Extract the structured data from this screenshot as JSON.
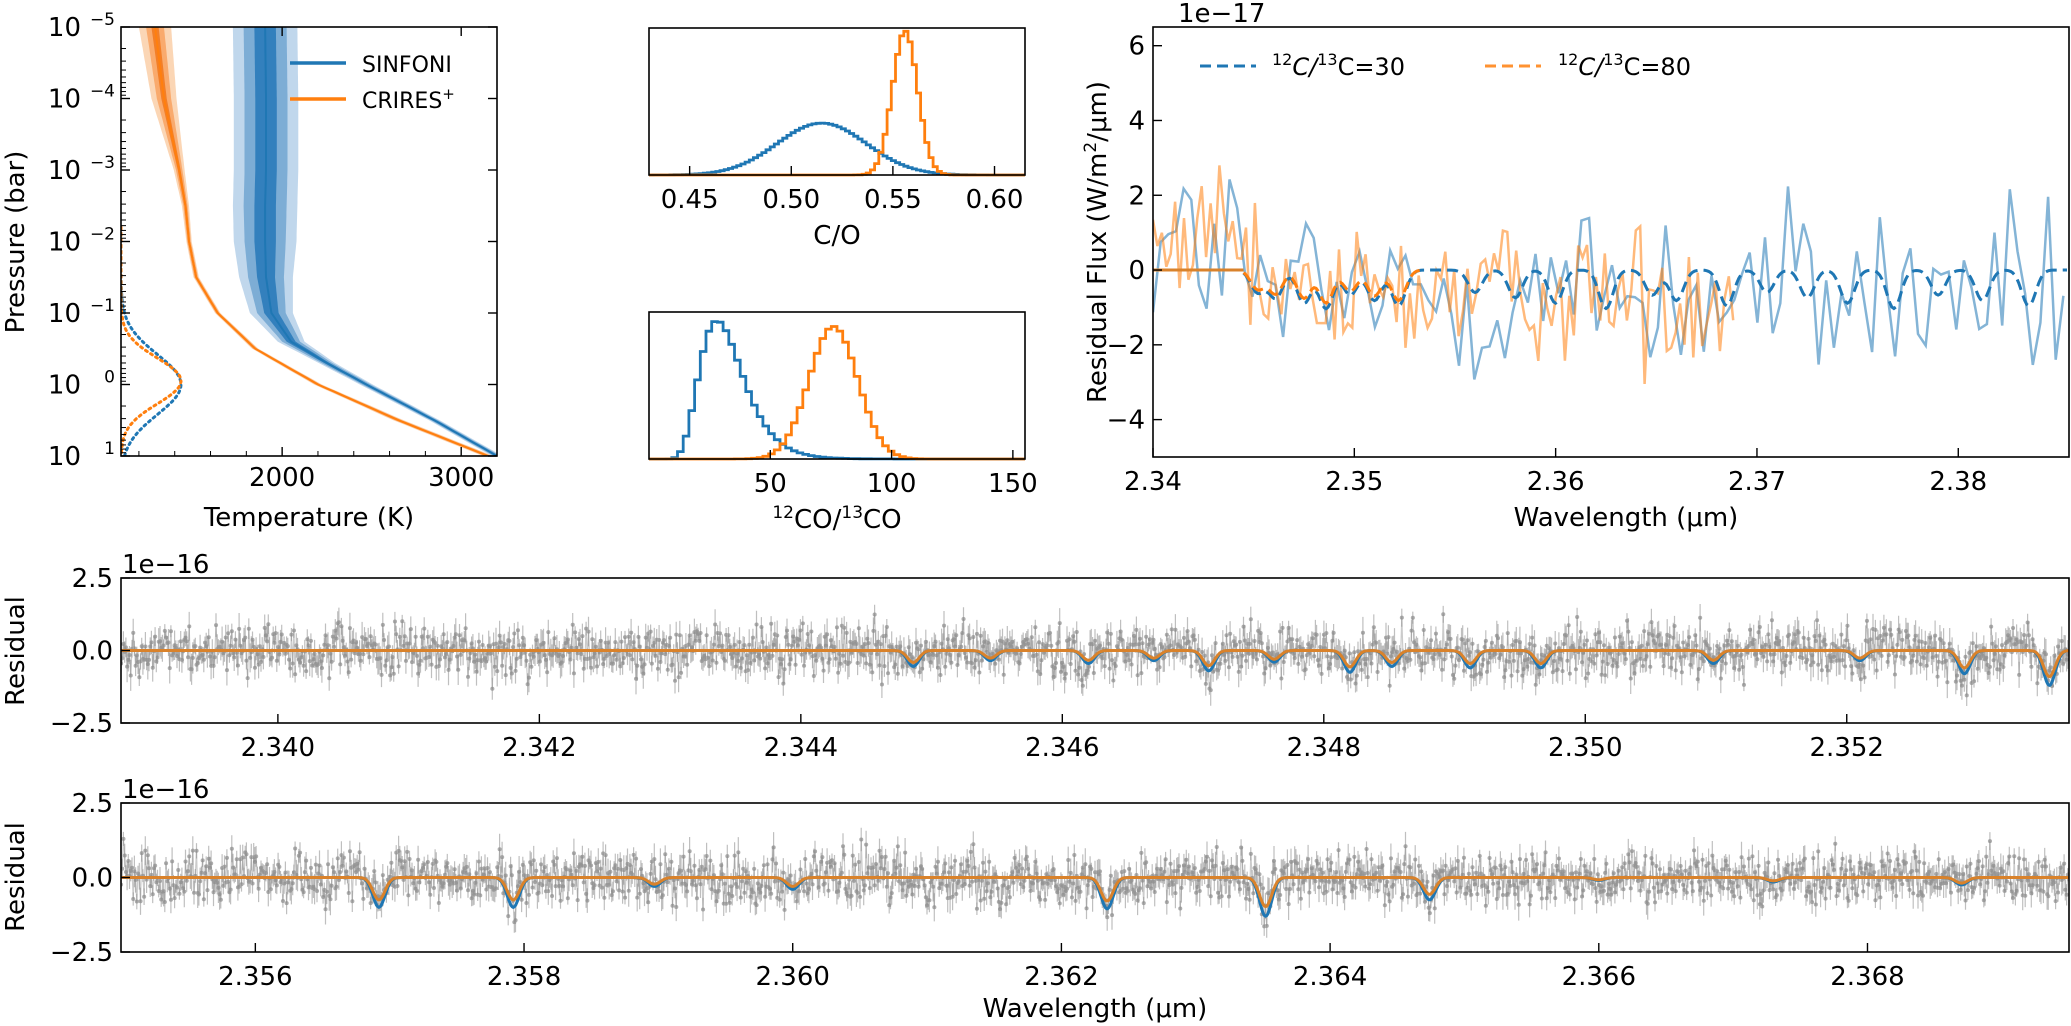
{
  "colors": {
    "sinfoni": "#1f77b4",
    "crires": "#ff7f0e",
    "data_gray": "#8c8c8c",
    "model_orange": "#d9822b"
  },
  "chart_data": [
    {
      "id": "pt_profile",
      "type": "line",
      "xlabel": "Temperature (K)",
      "ylabel": "Pressure (bar)",
      "xlim": [
        1100,
        3200
      ],
      "ylim_log10": [
        1,
        -5
      ],
      "xticks": [
        "2000",
        "3000"
      ],
      "xtick_values": [
        2000,
        3000
      ],
      "yticks": [
        {
          "base": "10",
          "exp": "−5",
          "value": -5
        },
        {
          "base": "10",
          "exp": "−4",
          "value": -4
        },
        {
          "base": "10",
          "exp": "−3",
          "value": -3
        },
        {
          "base": "10",
          "exp": "−2",
          "value": -2
        },
        {
          "base": "10",
          "exp": "−1",
          "value": -1
        },
        {
          "base": "10",
          "exp": "0",
          "value": 0
        },
        {
          "base": "10",
          "exp": "1",
          "value": 1
        }
      ],
      "legend": [
        {
          "label": "SINFONI",
          "color": "#1f77b4"
        },
        {
          "label": "CRIRES",
          "sup": "+",
          "color": "#ff7f0e"
        }
      ],
      "series": [
        {
          "name": "SINFONI",
          "logP": [
            -5,
            -4,
            -3,
            -2.5,
            -2,
            -1.5,
            -1,
            -0.6,
            -0.3,
            0,
            0.5,
            1
          ],
          "T_median": [
            1905,
            1910,
            1910,
            1905,
            1905,
            1910,
            1940,
            2050,
            2250,
            2470,
            2850,
            3200
          ],
          "half_widths": [
            [
              60,
              120,
              180
            ],
            [
              60,
              120,
              180
            ],
            [
              60,
              120,
              180
            ],
            [
              60,
              120,
              180
            ],
            [
              60,
              115,
              175
            ],
            [
              50,
              100,
              150
            ],
            [
              40,
              80,
              120
            ],
            [
              25,
              50,
              75
            ],
            [
              15,
              30,
              45
            ],
            [
              12,
              24,
              36
            ],
            [
              10,
              20,
              30
            ],
            [
              10,
              20,
              30
            ]
          ]
        },
        {
          "name": "CRIRES+",
          "logP": [
            -5,
            -4,
            -3,
            -2.5,
            -2,
            -1.5,
            -1,
            -0.5,
            0,
            0.5,
            1
          ],
          "T_median": [
            1290,
            1340,
            1425,
            1460,
            1480,
            1520,
            1640,
            1850,
            2200,
            2650,
            3150
          ],
          "half_widths": [
            [
              20,
              50,
              90
            ],
            [
              15,
              40,
              70
            ],
            [
              8,
              18,
              30
            ],
            [
              6,
              12,
              20
            ],
            [
              5,
              10,
              15
            ],
            [
              5,
              10,
              15
            ],
            [
              5,
              10,
              15
            ],
            [
              6,
              12,
              18
            ],
            [
              8,
              15,
              22
            ],
            [
              10,
              20,
              30
            ],
            [
              10,
              20,
              30
            ]
          ]
        }
      ],
      "contribution_functions": [
        {
          "name": "SINFONI",
          "center_logP": 0.0,
          "width": 0.42
        },
        {
          "name": "CRIRES+",
          "center_logP": -0.05,
          "width": 0.32
        }
      ]
    },
    {
      "id": "co_ratio",
      "type": "bar",
      "subtype": "step-histogram",
      "xlabel": "C/O",
      "xlim": [
        0.43,
        0.615
      ],
      "xticks": [
        "0.45",
        "0.50",
        "0.55",
        "0.60"
      ],
      "xtick_values": [
        0.45,
        0.5,
        0.55,
        0.6
      ],
      "series": [
        {
          "name": "SINFONI",
          "distribution": "gaussian",
          "mean": 0.515,
          "sigma": 0.022,
          "peak": 0.36
        },
        {
          "name": "CRIRES+",
          "distribution": "gaussian",
          "mean": 0.556,
          "sigma": 0.0062,
          "peak": 1.0
        }
      ]
    },
    {
      "id": "isotope_ratio",
      "type": "bar",
      "subtype": "step-histogram",
      "xlabel_parts": [
        "12",
        "CO/",
        "13",
        "CO"
      ],
      "xlim": [
        0,
        155
      ],
      "xticks": [
        "50",
        "100",
        "150"
      ],
      "xtick_values": [
        50,
        100,
        150
      ],
      "series": [
        {
          "name": "SINFONI",
          "distribution": "lognormal",
          "mode": 28,
          "sigma_log": 0.32,
          "peak": 0.96
        },
        {
          "name": "CRIRES+",
          "distribution": "gaussian",
          "mean": 76,
          "sigma": 10,
          "peak": 0.92
        }
      ]
    },
    {
      "id": "residual_zoom",
      "type": "line",
      "multiplier": "1e−17",
      "xlabel": "Wavelength (μm)",
      "ylabel_parts": [
        "Residual Flux (W/m",
        "2",
        "/μm)"
      ],
      "xlim": [
        2.34,
        2.3855
      ],
      "ylim": [
        -5,
        6.5
      ],
      "xticks": [
        "2.34",
        "2.35",
        "2.36",
        "2.37",
        "2.38"
      ],
      "xtick_values": [
        2.34,
        2.35,
        2.36,
        2.37,
        2.38
      ],
      "yticks": [
        "6",
        "4",
        "2",
        "0",
        "−2",
        "−4"
      ],
      "ytick_values": [
        6,
        4,
        2,
        0,
        -2,
        -4
      ],
      "legend": [
        {
          "pre": "12",
          "mid": "C/",
          "sup2": "13",
          "post": "C=30",
          "color": "#1f77b4"
        },
        {
          "pre": "12",
          "mid": "C/",
          "sup2": "13",
          "post": "C=80",
          "color": "#ff7f0e"
        }
      ],
      "model_lines_um": [
        2.3452,
        2.3461,
        2.3475,
        2.3486,
        2.3498,
        2.351,
        2.3522,
        2.356,
        2.358,
        2.36,
        2.3625,
        2.3648,
        2.366,
        2.3685,
        2.3705,
        2.3725,
        2.3745,
        2.3768,
        2.379,
        2.3812,
        2.3835
      ],
      "sinfoni_noise_amp": 1.8,
      "crires_noise_amp": 1.3,
      "crires_range_um": [
        2.34,
        2.369
      ]
    },
    {
      "id": "residual_panel_1",
      "type": "scatter",
      "multiplier": "1e−16",
      "ylabel": "Residual",
      "xlim": [
        2.3388,
        2.3537
      ],
      "ylim": [
        -2.5,
        2.5
      ],
      "xticks": [
        "2.340",
        "2.342",
        "2.344",
        "2.346",
        "2.348",
        "2.350",
        "2.352"
      ],
      "xtick_values": [
        2.34,
        2.342,
        2.344,
        2.346,
        2.348,
        2.35,
        2.352
      ],
      "yticks": [
        "2.5",
        "0.0",
        "−2.5"
      ],
      "ytick_values": [
        2.5,
        0.0,
        -2.5
      ],
      "absorption_lines": [
        {
          "um": 2.34486,
          "depth": 0.55
        },
        {
          "um": 2.34545,
          "depth": 0.35
        },
        {
          "um": 2.3462,
          "depth": 0.45
        },
        {
          "um": 2.3467,
          "depth": 0.35
        },
        {
          "um": 2.34712,
          "depth": 0.7
        },
        {
          "um": 2.34762,
          "depth": 0.4
        },
        {
          "um": 2.3482,
          "depth": 0.75
        },
        {
          "um": 2.34852,
          "depth": 0.55
        },
        {
          "um": 2.34912,
          "depth": 0.6
        },
        {
          "um": 2.34966,
          "depth": 0.6
        },
        {
          "um": 2.35098,
          "depth": 0.45
        },
        {
          "um": 2.3521,
          "depth": 0.35
        },
        {
          "um": 2.3529,
          "depth": 0.8
        },
        {
          "um": 2.35355,
          "depth": 1.2
        },
        {
          "um": 2.35445,
          "depth": 0.45
        },
        {
          "um": 2.3552,
          "depth": 0.95
        },
        {
          "um": 2.35585,
          "depth": 0.4
        },
        {
          "um": 2.35662,
          "depth": 1.05
        },
        {
          "um": 2.3573,
          "depth": 0.4
        },
        {
          "um": 2.35803,
          "depth": 0.4
        }
      ],
      "noise_sigma": 0.62
    },
    {
      "id": "residual_panel_2",
      "type": "scatter",
      "multiplier": "1e−16",
      "ylabel": "Residual",
      "xlabel": "Wavelength (μm)",
      "xlim": [
        2.355,
        2.3695
      ],
      "ylim": [
        -2.5,
        2.5
      ],
      "xticks": [
        "2.356",
        "2.358",
        "2.360",
        "2.362",
        "2.364",
        "2.366",
        "2.368"
      ],
      "xtick_values": [
        2.356,
        2.358,
        2.36,
        2.362,
        2.364,
        2.366,
        2.368
      ],
      "yticks": [
        "2.5",
        "0.0",
        "−2.5"
      ],
      "ytick_values": [
        2.5,
        0.0,
        -2.5
      ],
      "absorption_lines": [
        {
          "um": 2.35692,
          "depth": 1.0
        },
        {
          "um": 2.35792,
          "depth": 1.0
        },
        {
          "um": 2.35897,
          "depth": 0.3
        },
        {
          "um": 2.36,
          "depth": 0.4
        },
        {
          "um": 2.36234,
          "depth": 1.05
        },
        {
          "um": 2.36352,
          "depth": 1.3
        },
        {
          "um": 2.36474,
          "depth": 0.75
        },
        {
          "um": 2.366,
          "depth": 0.1
        },
        {
          "um": 2.3673,
          "depth": 0.15
        },
        {
          "um": 2.3687,
          "depth": 0.25
        }
      ],
      "noise_sigma": 0.62
    }
  ]
}
